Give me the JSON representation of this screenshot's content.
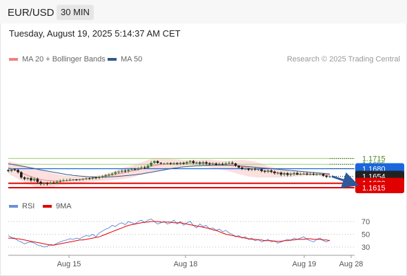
{
  "header": {
    "pair": "EUR/USD",
    "timeframe": "30 MIN"
  },
  "datetime": "Tuesday, August 19, 2025 5:14:37 AM CET",
  "legend": {
    "ma20": "MA 20 + Bollinger Bands",
    "ma50": "MA 50"
  },
  "credit": "Research © 2025 Trading Central",
  "rsi_legend": {
    "rsi": "RSI",
    "ma9": "9MA"
  },
  "colors": {
    "ma20": "#f08080",
    "ma50": "#34588a",
    "support": "#e00000",
    "pivot": "#1a66dd",
    "resistance": "#9bcf6c",
    "rsi": "#6b8fd9",
    "rsi_ma": "#e00000",
    "arrow": "#2d5a9c",
    "bands": "#fbd4d4"
  },
  "chart_data": [
    {
      "type": "candlestick",
      "title": "EUR/USD 30 MIN",
      "price_range": [
        1.16,
        1.1725
      ],
      "price_levels": [
        {
          "value": 1.1715,
          "label": "1.1715",
          "kind": "resistance"
        },
        {
          "value": 1.1695,
          "label": "1.1695",
          "kind": "resistance"
        },
        {
          "value": 1.168,
          "label": "1.1680",
          "kind": "pivot"
        },
        {
          "value": 1.1654,
          "label": "1.1654",
          "kind": "last"
        },
        {
          "value": 1.163,
          "label": "1.1630",
          "kind": "support"
        },
        {
          "value": 1.1615,
          "label": "1.1615",
          "kind": "support"
        }
      ],
      "x_ticks": [
        "Aug 15",
        "Aug 18",
        "Aug 19",
        "Aug 28"
      ],
      "series": {
        "close": [
          1.1672,
          1.1678,
          1.1676,
          1.1668,
          1.165,
          1.1645,
          1.1648,
          1.164,
          1.1645,
          1.1635,
          1.1628,
          1.163,
          1.1628,
          1.1632,
          1.163,
          1.1635,
          1.1638,
          1.164,
          1.164,
          1.1642,
          1.1643,
          1.1642,
          1.1643,
          1.1645,
          1.1647,
          1.1646,
          1.165,
          1.1648,
          1.1652,
          1.1654,
          1.1658,
          1.166,
          1.1663,
          1.1668,
          1.167,
          1.1673,
          1.1672,
          1.1676,
          1.1678,
          1.1677,
          1.168,
          1.1684,
          1.1682,
          1.169,
          1.17,
          1.1706,
          1.17,
          1.1698,
          1.1698,
          1.1699,
          1.1697,
          1.1699,
          1.1697,
          1.17,
          1.1698,
          1.1703,
          1.1706,
          1.17,
          1.1701,
          1.1698,
          1.1702,
          1.1698,
          1.1696,
          1.1697,
          1.1693,
          1.1696,
          1.1694,
          1.1698,
          1.17,
          1.1698,
          1.169,
          1.1684,
          1.1679,
          1.168,
          1.1676,
          1.168,
          1.1677,
          1.1678,
          1.1672,
          1.167,
          1.1674,
          1.167,
          1.1665,
          1.1666,
          1.166,
          1.1664,
          1.1659,
          1.1662,
          1.1665,
          1.166,
          1.1662,
          1.1663,
          1.166,
          1.1662,
          1.166,
          1.1661,
          1.1662,
          1.1656,
          1.1652,
          1.1654
        ],
        "ma20": [
          1.1685,
          1.168,
          1.1676,
          1.1671,
          1.1666,
          1.1661,
          1.1657,
          1.1653,
          1.1649,
          1.1646,
          1.1643,
          1.1641,
          1.164,
          1.1639,
          1.1638,
          1.1638,
          1.1638,
          1.1638,
          1.1639,
          1.164,
          1.1641,
          1.1642,
          1.1643,
          1.1644,
          1.1645,
          1.1646,
          1.1648,
          1.1649,
          1.1651,
          1.1653,
          1.1655,
          1.1657,
          1.1659,
          1.1661,
          1.1663,
          1.1665,
          1.1667,
          1.167,
          1.1672,
          1.1674,
          1.1676,
          1.1679,
          1.1682,
          1.1685,
          1.1688,
          1.1691,
          1.1693,
          1.1694,
          1.1695,
          1.1696,
          1.1697,
          1.1697,
          1.1697,
          1.1698,
          1.1698,
          1.1699,
          1.1699,
          1.1699,
          1.1699,
          1.1699,
          1.1699,
          1.1698,
          1.1698,
          1.1697,
          1.1697,
          1.1696,
          1.1695,
          1.1695,
          1.1694,
          1.1693,
          1.1691,
          1.1689,
          1.1687,
          1.1685,
          1.1683,
          1.1681,
          1.1679,
          1.1677,
          1.1675,
          1.1673,
          1.1671,
          1.1669,
          1.1667,
          1.1666,
          1.1665,
          1.1664,
          1.1663,
          1.1662,
          1.1662,
          1.1661,
          1.1661,
          1.1661,
          1.1661,
          1.1661,
          1.1661,
          1.1661,
          1.1661,
          1.166,
          1.1659,
          1.1659
        ],
        "ma50": [
          1.1697,
          1.1695,
          1.1693,
          1.1691,
          1.1689,
          1.1687,
          1.1685,
          1.1683,
          1.1681,
          1.1678,
          1.1676,
          1.1674,
          1.1672,
          1.167,
          1.1668,
          1.1666,
          1.1664,
          1.1662,
          1.166,
          1.1659,
          1.1657,
          1.1656,
          1.1655,
          1.1654,
          1.1653,
          1.1652,
          1.1652,
          1.1651,
          1.1651,
          1.1651,
          1.1651,
          1.1652,
          1.1652,
          1.1653,
          1.1654,
          1.1655,
          1.1656,
          1.1657,
          1.1658,
          1.1659,
          1.1661,
          1.1662,
          1.1664,
          1.1666,
          1.1668,
          1.167,
          1.1672,
          1.1674,
          1.1676,
          1.1678,
          1.168,
          1.1682,
          1.1683,
          1.1685,
          1.1686,
          1.1687,
          1.1688,
          1.1689,
          1.169,
          1.169,
          1.1691,
          1.1691,
          1.1692,
          1.1692,
          1.1692,
          1.1692,
          1.1692,
          1.1692,
          1.1692,
          1.1691,
          1.1691,
          1.169,
          1.1689,
          1.1688,
          1.1687,
          1.1686,
          1.1685,
          1.1684,
          1.1683,
          1.1682,
          1.1681,
          1.168,
          1.1679,
          1.1678,
          1.1677,
          1.1676,
          1.1675,
          1.1674,
          1.1673,
          1.1672,
          1.1671,
          1.167,
          1.1669,
          1.1668,
          1.1667,
          1.1666,
          1.1665,
          1.1664,
          1.1663,
          1.1662
        ],
        "bb_upper": [
          1.1706,
          1.1703,
          1.17,
          1.1697,
          1.1694,
          1.1691,
          1.1688,
          1.1685,
          1.1682,
          1.1679,
          1.1676,
          1.1673,
          1.167,
          1.1667,
          1.1664,
          1.1661,
          1.1659,
          1.1657,
          1.1656,
          1.1655,
          1.1654,
          1.1654,
          1.1653,
          1.1653,
          1.1653,
          1.1654,
          1.1655,
          1.1656,
          1.1658,
          1.166,
          1.1663,
          1.1666,
          1.1669,
          1.1673,
          1.1677,
          1.1681,
          1.1684,
          1.1687,
          1.169,
          1.1694,
          1.1698,
          1.1702,
          1.1706,
          1.171,
          1.1713,
          1.1715,
          1.1716,
          1.1716,
          1.1716,
          1.1715,
          1.1714,
          1.1713,
          1.1712,
          1.1711,
          1.171,
          1.171,
          1.171,
          1.171,
          1.171,
          1.171,
          1.1711,
          1.1711,
          1.1711,
          1.171,
          1.1709,
          1.1708,
          1.1707,
          1.1707,
          1.1707,
          1.1708,
          1.1709,
          1.171,
          1.171,
          1.1709,
          1.1708,
          1.1706,
          1.1704,
          1.1701,
          1.1697,
          1.1693,
          1.1689,
          1.1686,
          1.1683,
          1.168,
          1.1678,
          1.1676,
          1.1674,
          1.1672,
          1.1671,
          1.167,
          1.1669,
          1.1668,
          1.1667,
          1.1667,
          1.1666,
          1.1666,
          1.1666,
          1.1666,
          1.1666,
          1.1666
        ],
        "bb_lower": [
          1.1664,
          1.1657,
          1.1651,
          1.1645,
          1.1638,
          1.1632,
          1.1627,
          1.1623,
          1.1619,
          1.1616,
          1.1614,
          1.1613,
          1.1614,
          1.1616,
          1.1619,
          1.1621,
          1.1623,
          1.1624,
          1.1625,
          1.1626,
          1.1627,
          1.1628,
          1.163,
          1.1632,
          1.1634,
          1.1635,
          1.1636,
          1.1637,
          1.1638,
          1.1638,
          1.1639,
          1.164,
          1.1641,
          1.1642,
          1.1643,
          1.1644,
          1.1646,
          1.1648,
          1.165,
          1.1653,
          1.1656,
          1.1659,
          1.1662,
          1.1664,
          1.1666,
          1.1668,
          1.167,
          1.1672,
          1.1674,
          1.1676,
          1.1678,
          1.168,
          1.1682,
          1.1684,
          1.1686,
          1.1688,
          1.1688,
          1.1688,
          1.1688,
          1.1688,
          1.1688,
          1.1686,
          1.1684,
          1.1682,
          1.168,
          1.1678,
          1.1676,
          1.1674,
          1.1671,
          1.1668,
          1.1665,
          1.1662,
          1.1659,
          1.1656,
          1.1653,
          1.1652,
          1.1651,
          1.165,
          1.165,
          1.165,
          1.165,
          1.165,
          1.165,
          1.165,
          1.1651,
          1.1651,
          1.1652,
          1.1652,
          1.1653,
          1.1653,
          1.1654,
          1.1654,
          1.1655,
          1.1655,
          1.1655,
          1.1655,
          1.1654,
          1.1653,
          1.1652,
          1.1652
        ]
      },
      "projection": {
        "from": 1.1654,
        "to": 1.1615
      }
    },
    {
      "type": "line",
      "title": "RSI",
      "ylim": [
        20,
        80
      ],
      "y_ticks": [
        70,
        50,
        30
      ],
      "series": [
        {
          "name": "RSI",
          "values": [
            48,
            45,
            44,
            40,
            38,
            35,
            37,
            38,
            36,
            33,
            32,
            30,
            31,
            34,
            33,
            36,
            38,
            40,
            41,
            43,
            42,
            44,
            43,
            46,
            48,
            47,
            50,
            46,
            52,
            55,
            58,
            60,
            64,
            62,
            66,
            68,
            65,
            70,
            68,
            66,
            70,
            72,
            68,
            72,
            74,
            70,
            66,
            68,
            70,
            66,
            68,
            72,
            66,
            70,
            64,
            68,
            70,
            64,
            60,
            66,
            62,
            64,
            58,
            60,
            56,
            58,
            54,
            56,
            52,
            50,
            46,
            48,
            44,
            46,
            42,
            44,
            40,
            42,
            38,
            40,
            42,
            38,
            40,
            36,
            38,
            40,
            42,
            40,
            44,
            42,
            44,
            46,
            42,
            40,
            38,
            42,
            44,
            40,
            38,
            41
          ]
        },
        {
          "name": "9MA",
          "values": [
            44,
            44,
            43,
            43,
            42,
            41,
            40,
            39,
            38,
            37,
            36,
            35,
            34,
            33,
            33,
            34,
            35,
            36,
            37,
            38,
            39,
            40,
            41,
            41,
            42,
            43,
            44,
            45,
            46,
            48,
            50,
            52,
            54,
            56,
            58,
            60,
            62,
            64,
            65,
            66,
            67,
            68,
            69,
            69,
            70,
            70,
            70,
            69,
            69,
            69,
            69,
            68,
            68,
            68,
            67,
            66,
            65,
            64,
            63,
            62,
            61,
            60,
            59,
            57,
            56,
            54,
            52,
            50,
            49,
            48,
            47,
            46,
            45,
            44,
            43,
            42,
            42,
            41,
            41,
            40,
            40,
            40,
            39,
            39,
            39,
            40,
            40,
            41,
            41,
            42,
            42,
            42,
            43,
            43,
            42,
            42,
            42,
            41,
            41,
            40
          ]
        }
      ]
    }
  ]
}
